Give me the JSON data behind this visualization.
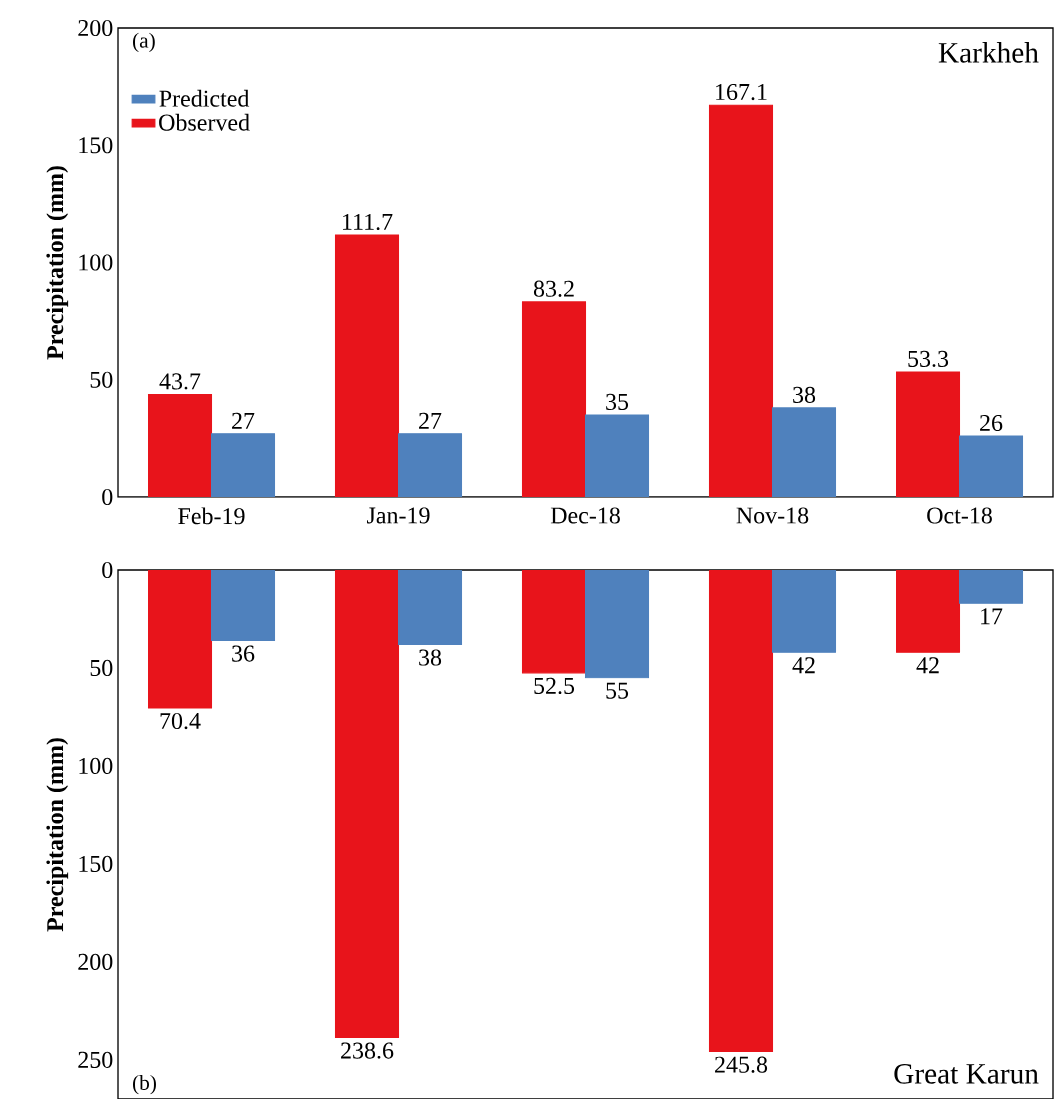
{
  "chart_data": [
    {
      "type": "bar",
      "categories": [
        "Feb-19",
        "Jan-19",
        "Dec-18",
        "Nov-18",
        "Oct-18"
      ],
      "series": [
        {
          "name": "Observed",
          "color": "#e8141b",
          "values": [
            43.7,
            111.7,
            83.2,
            167.1,
            53.3
          ]
        },
        {
          "name": "Predicted",
          "color": "#4f81bd",
          "values": [
            27,
            27,
            35,
            38,
            26
          ]
        }
      ],
      "ylabel": "Precipitation (mm)",
      "ylim": [
        0,
        200
      ],
      "yticks": [
        0,
        50,
        100,
        150,
        200
      ],
      "data_labels": true,
      "legend": "top left",
      "annotations": [
        "(a)",
        "Karkheh"
      ]
    },
    {
      "type": "bar",
      "categories": [
        null,
        null,
        null,
        null,
        null
      ],
      "series": [
        {
          "color": "#e8141b",
          "values": [
            70.4,
            238.6,
            52.5,
            245.8,
            42
          ]
        },
        {
          "color": "#4f81bd",
          "values": [
            36,
            38,
            55,
            42,
            17
          ]
        }
      ],
      "ylabel": "Precipitation (mm)",
      "ylim": [
        270,
        0
      ],
      "yticks": [
        0,
        50,
        100,
        150,
        200,
        250
      ],
      "tick_labels": "y",
      "data_labels": true,
      "legend": false,
      "annotations": [
        "(b)",
        "Great Karun"
      ]
    }
  ]
}
